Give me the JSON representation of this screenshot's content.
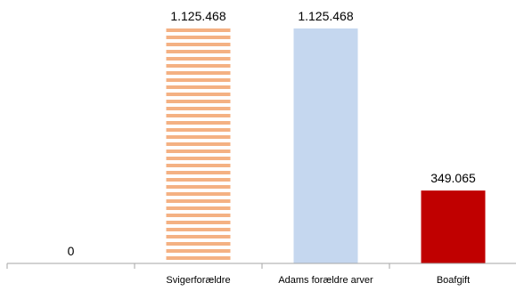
{
  "chart_data": {
    "type": "bar",
    "title": "",
    "xlabel": "",
    "ylabel": "",
    "categories": [
      "",
      "Svigerforældre",
      "Adams forældre arver",
      "Boafgift"
    ],
    "values": [
      0,
      1125468,
      1125468,
      349065
    ],
    "value_labels": [
      "0",
      "1.125.468",
      "1.125.468",
      "349.065"
    ],
    "ylim": [
      0,
      1125468
    ],
    "grid": false,
    "legend": "none",
    "bar_styles": [
      {
        "fill": "#f4b183",
        "pattern": "horizontal-stripes"
      },
      {
        "fill": "#f4b183",
        "pattern": "horizontal-stripes"
      },
      {
        "fill": "#c5d7ef",
        "pattern": "solid"
      },
      {
        "fill": "#c00000",
        "pattern": "solid"
      }
    ],
    "axis_color": "#a6a6a6"
  }
}
